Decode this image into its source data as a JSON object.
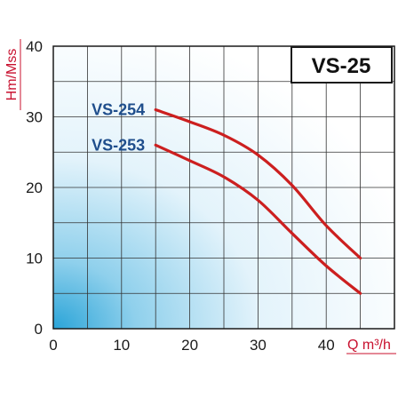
{
  "chart_data": {
    "type": "line",
    "title": "VS-25",
    "xlabel": "Q m³/h",
    "ylabel": "Hm/Mss",
    "xlim": [
      0,
      50
    ],
    "ylim": [
      0,
      40
    ],
    "x_ticks": [
      "0",
      "10",
      "20",
      "30",
      "40"
    ],
    "y_ticks": [
      "0",
      "10",
      "20",
      "30",
      "40"
    ],
    "grid": true,
    "series": [
      {
        "name": "VS-254",
        "color": "#cc1f1f",
        "x": [
          15,
          20,
          25,
          30,
          35,
          40,
          45
        ],
        "y": [
          31,
          29.3,
          27.4,
          24.6,
          20.3,
          14.6,
          10
        ]
      },
      {
        "name": "VS-253",
        "color": "#cc1f1f",
        "x": [
          15,
          20,
          25,
          30,
          35,
          40,
          45
        ],
        "y": [
          26,
          23.8,
          21.5,
          18.2,
          13.5,
          8.9,
          5
        ]
      }
    ]
  }
}
